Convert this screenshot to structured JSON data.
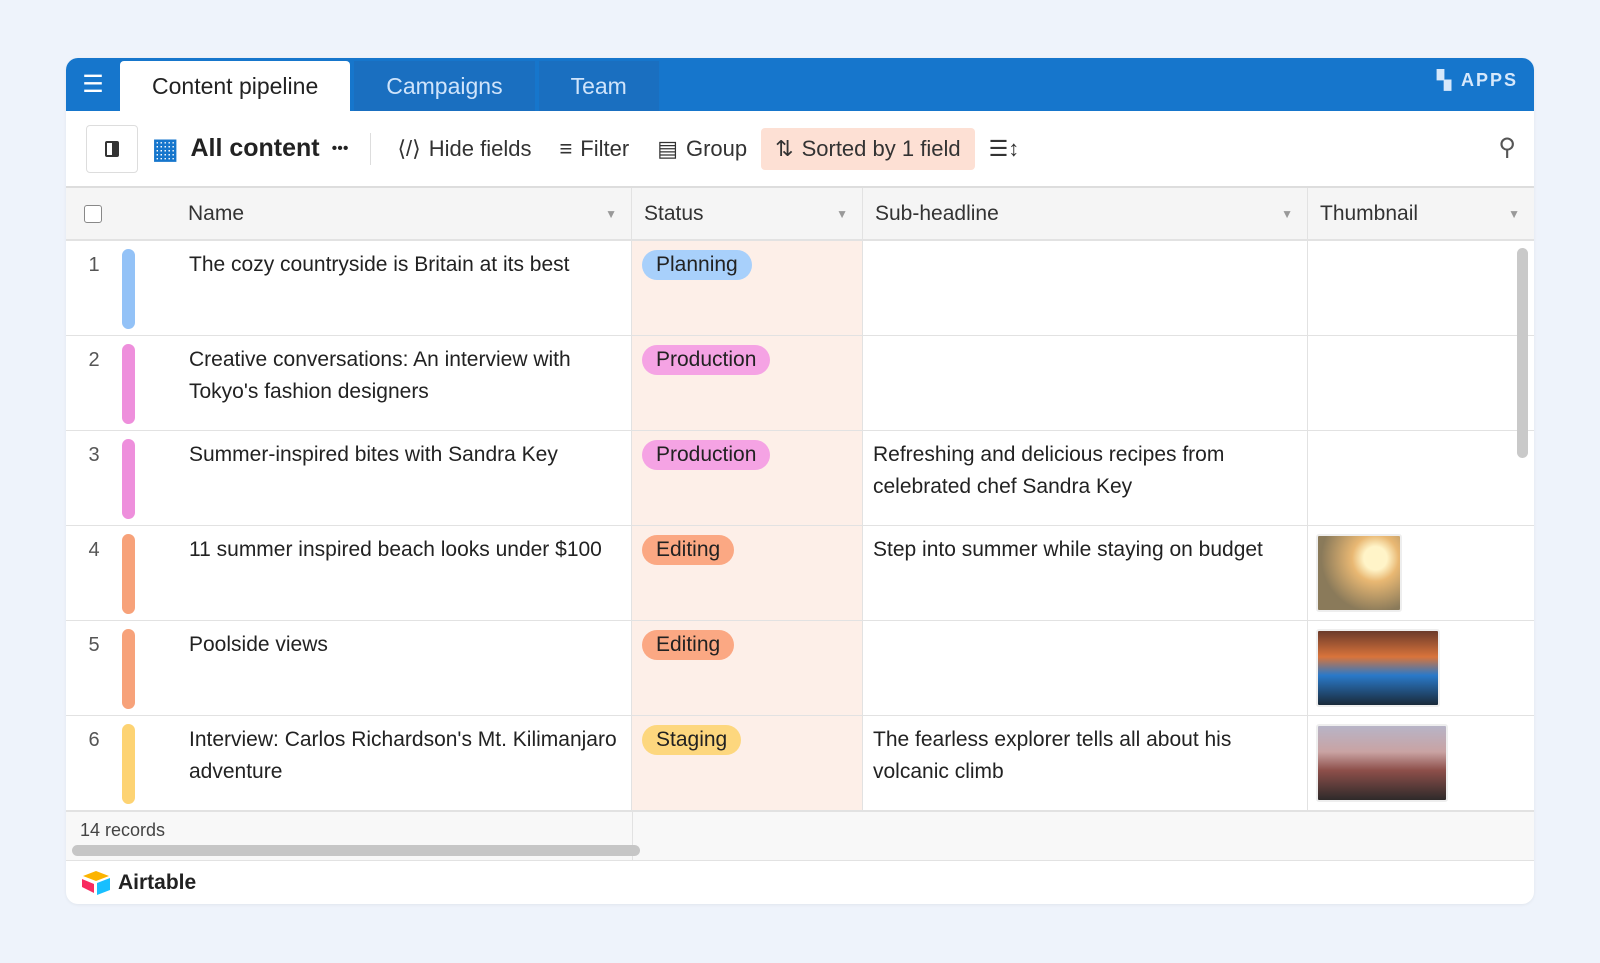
{
  "tabs": [
    {
      "label": "Content pipeline",
      "active": true
    },
    {
      "label": "Campaigns"
    },
    {
      "label": "Team"
    }
  ],
  "apps_label": "APPS",
  "toolbar": {
    "view_name": "All content",
    "more": "•••",
    "hide_fields": "Hide fields",
    "filter": "Filter",
    "group": "Group",
    "sort": "Sorted by 1 field"
  },
  "columns": [
    "Name",
    "Status",
    "Sub-headline",
    "Thumbnail"
  ],
  "rows": [
    {
      "num": "1",
      "name": "The cozy countryside is Britain at its best",
      "status": "Planning",
      "sub": "",
      "color": "#93c2f7",
      "pill_bg": "#a8d0fb",
      "thumb": ""
    },
    {
      "num": "2",
      "name": "Creative conversations: An interview with Tokyo's fashion designers",
      "status": "Production",
      "sub": "",
      "color": "#ee8fdc",
      "pill_bg": "#f5a3e4",
      "thumb": ""
    },
    {
      "num": "3",
      "name": "Summer-inspired bites with Sandra Key",
      "status": "Production",
      "sub": "Refreshing and delicious recipes from celebrated chef Sandra Key",
      "color": "#ee8fdc",
      "pill_bg": "#f5a3e4",
      "thumb": ""
    },
    {
      "num": "4",
      "name": "11 summer inspired beach looks under $100",
      "status": "Editing",
      "sub": "Step into summer while staying on budget",
      "color": "#f7a27a",
      "pill_bg": "#fba883",
      "thumb": "beach-hat"
    },
    {
      "num": "5",
      "name": "Poolside views",
      "status": "Editing",
      "sub": "",
      "color": "#f7a27a",
      "pill_bg": "#fba883",
      "thumb": "pool"
    },
    {
      "num": "6",
      "name": "Interview: Carlos Richardson's Mt. Kilimanjaro adventure",
      "status": "Staging",
      "sub": "The fearless explorer tells all about his volcanic climb",
      "color": "#fdd373",
      "pill_bg": "#fdd77e",
      "thumb": "mountain"
    }
  ],
  "footer": {
    "records": "14 records"
  },
  "brand": "Airtable"
}
